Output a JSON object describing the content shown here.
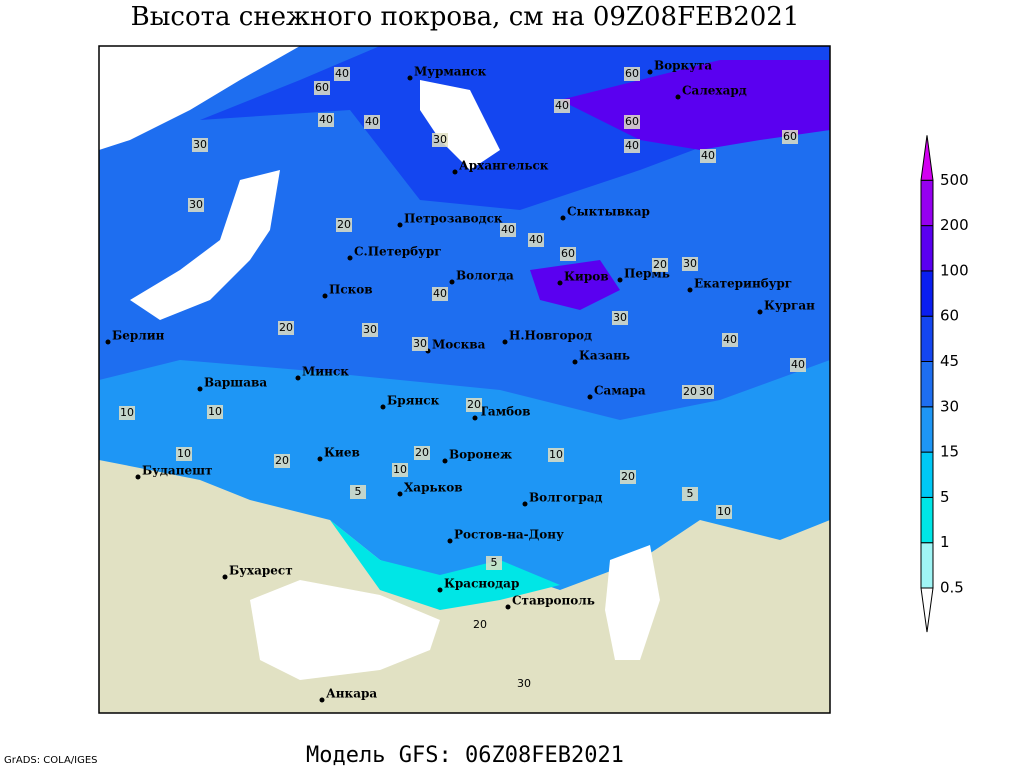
{
  "title": "Высота снежного покрова, см на 09Z08FEB2021",
  "footer": "Модель GFS: 06Z08FEB2021",
  "credit": "GrADS: COLA/IGES",
  "cities": [
    "Мурманск",
    "Воркута",
    "Салехард",
    "Архангельск",
    "Петрозаводск",
    "Сыктывкар",
    "С.Петербург",
    "Вологда",
    "Киров",
    "Пермь",
    "Екатеринбург",
    "Курган",
    "Псков",
    "Берлин",
    "Н.Новгород",
    "Москва",
    "Казань",
    "Минск",
    "Варшава",
    "Брянск",
    "Самара",
    "Тамбов",
    "Киев",
    "Воронеж",
    "Будапешт",
    "Харьков",
    "Волгоград",
    "Ростов-на-Дону",
    "Бухарест",
    "Краснодар",
    "Ставрополь",
    "Анкара"
  ],
  "contour_labels": [
    40,
    60,
    40,
    30,
    60,
    40,
    40,
    60,
    40,
    60,
    40,
    30,
    20,
    30,
    40,
    40,
    40,
    60,
    20,
    30,
    20,
    30,
    40,
    30,
    30,
    40,
    20,
    20,
    30,
    10,
    20,
    20,
    10,
    5,
    10,
    20,
    10,
    5,
    10,
    5,
    20,
    30,
    10
  ],
  "legend": {
    "levels": [
      0.5,
      1,
      5,
      15,
      30,
      45,
      60,
      100,
      200,
      500
    ],
    "colors": [
      "#ffffff",
      "#a0f5f5",
      "#00e6e6",
      "#00c8f5",
      "#1e96f5",
      "#1e6ef0",
      "#1446f0",
      "#0a1ef0",
      "#5a00f0",
      "#9600f0",
      "#d200f0"
    ]
  }
}
